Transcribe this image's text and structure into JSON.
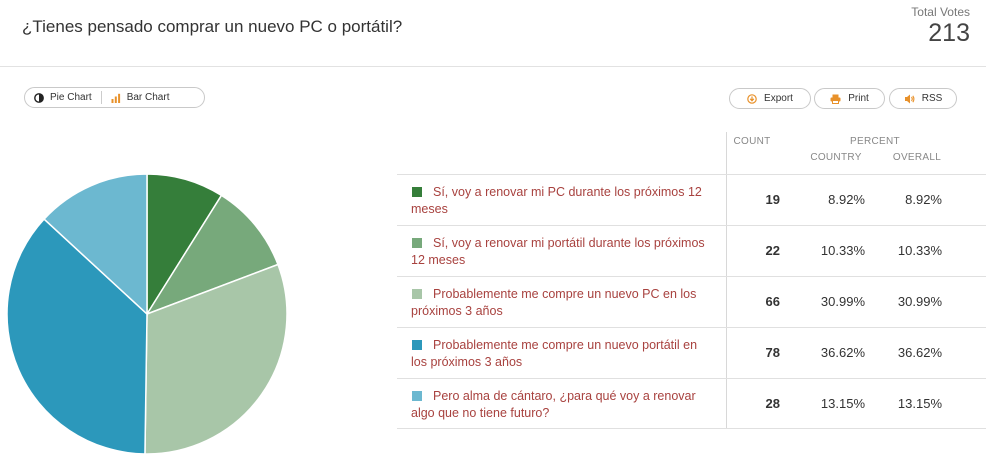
{
  "poll": {
    "title": "¿Tienes pensado comprar un nuevo PC o portátil?",
    "total_votes_label": "Total Votes",
    "total_votes": "213"
  },
  "view_toggle": {
    "pie_label": "Pie Chart",
    "bar_label": "Bar Chart"
  },
  "actions": {
    "export_label": "Export",
    "print_label": "Print",
    "rss_label": "RSS"
  },
  "table": {
    "count_header": "COUNT",
    "percent_header": "PERCENT",
    "country_header": "COUNTRY",
    "overall_header": "OVERALL",
    "rows": [
      {
        "answer": "Sí, voy a renovar mi PC durante los próximos 12 meses",
        "count": "19",
        "country": "8.92%",
        "overall": "8.92%",
        "color": "#357e3a"
      },
      {
        "answer": "Sí, voy a renovar mi portátil durante los próximos 12 meses",
        "count": "22",
        "country": "10.33%",
        "overall": "10.33%",
        "color": "#77a97b"
      },
      {
        "answer": "Probablemente me compre un nuevo PC en los próximos 3 años",
        "count": "66",
        "country": "30.99%",
        "overall": "30.99%",
        "color": "#a8c6a8"
      },
      {
        "answer": "Probablemente me compre un nuevo portátil en los próximos 3 años",
        "count": "78",
        "country": "36.62%",
        "overall": "36.62%",
        "color": "#2c98bb"
      },
      {
        "answer": "Pero alma de cántaro, ¿para qué voy a renovar algo que no tiene futuro?",
        "count": "28",
        "country": "13.15%",
        "overall": "13.15%",
        "color": "#6cb8d0"
      }
    ]
  },
  "chart_data": {
    "type": "pie",
    "categories": [
      "Sí, voy a renovar mi PC durante los próximos 12 meses",
      "Sí, voy a renovar mi portátil durante los próximos 12 meses",
      "Probablemente me compre un nuevo PC en los próximos 3 años",
      "Probablemente me compre un nuevo portátil en los próximos 3 años",
      "Pero alma de cántaro, ¿para qué voy a renovar algo que no tiene futuro?"
    ],
    "values": [
      19,
      22,
      66,
      78,
      28
    ],
    "colors": [
      "#357e3a",
      "#77a97b",
      "#a8c6a8",
      "#2c98bb",
      "#6cb8d0"
    ]
  }
}
